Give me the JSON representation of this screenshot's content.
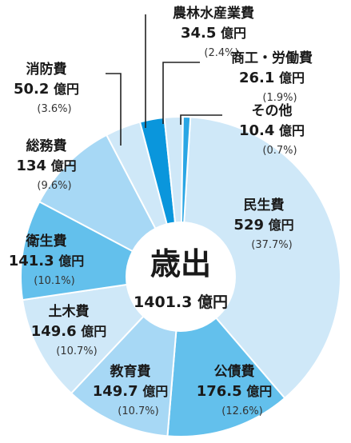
{
  "chart_data": {
    "type": "pie",
    "center": {
      "title": "歳出",
      "total": "1401.3 億円"
    },
    "slices": [
      {
        "name": "民生費",
        "value": 529,
        "value_label": "529",
        "unit": "億円",
        "percent": "(37.7%)",
        "color": "#cfe8f8"
      },
      {
        "name": "公債費",
        "value": 176.5,
        "value_label": "176.5",
        "unit": "億円",
        "percent": "(12.6%)",
        "color": "#63c0ec"
      },
      {
        "name": "教育費",
        "value": 149.7,
        "value_label": "149.7",
        "unit": "億円",
        "percent": "(10.7%)",
        "color": "#a7d8f5"
      },
      {
        "name": "土木費",
        "value": 149.6,
        "value_label": "149.6",
        "unit": "億円",
        "percent": "(10.7%)",
        "color": "#cfe8f8"
      },
      {
        "name": "衛生費",
        "value": 141.3,
        "value_label": "141.3",
        "unit": "億円",
        "percent": "(10.1%)",
        "color": "#63c0ec"
      },
      {
        "name": "総務費",
        "value": 134,
        "value_label": "134",
        "unit": "億円",
        "percent": "(9.6%)",
        "color": "#a7d8f5"
      },
      {
        "name": "消防費",
        "value": 50.2,
        "value_label": "50.2",
        "unit": "億円",
        "percent": "(3.6%)",
        "color": "#cfe8f8"
      },
      {
        "name": "農林水産業費",
        "value": 34.5,
        "value_label": "34.5",
        "unit": "億円",
        "percent": "(2.4%)",
        "color": "#0a96dc"
      },
      {
        "name": "商工・労働費",
        "value": 26.1,
        "value_label": "26.1",
        "unit": "億円",
        "percent": "(1.9%)",
        "color": "#cfe8f8"
      },
      {
        "name": "その他",
        "value": 10.4,
        "value_label": "10.4",
        "unit": "億円",
        "percent": "(0.7%)",
        "color": "#2aa6e4"
      }
    ]
  }
}
